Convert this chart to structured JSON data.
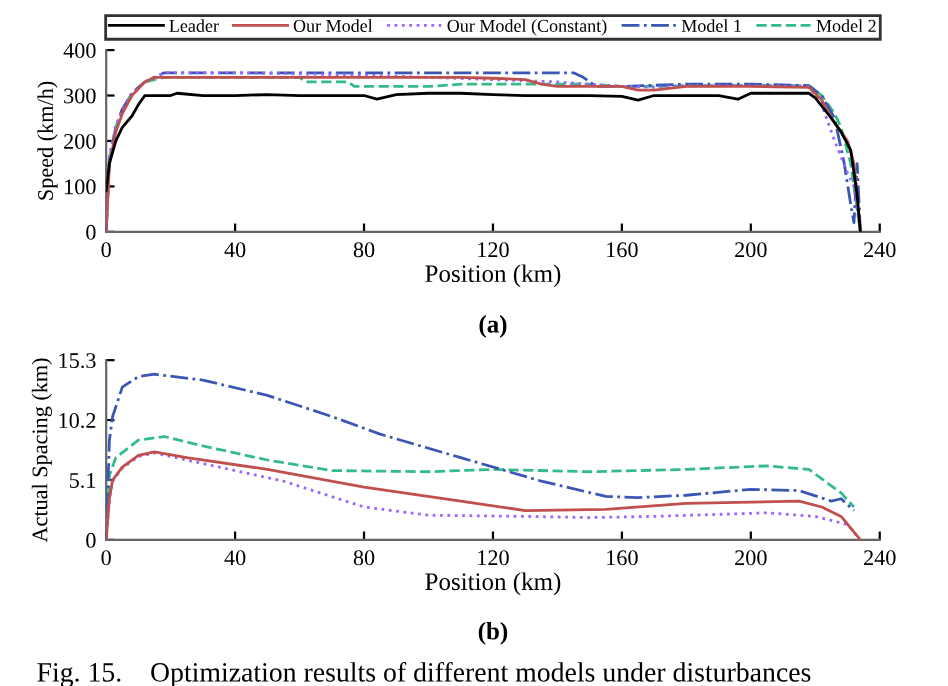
{
  "chart_data": [
    {
      "type": "line",
      "xlabel": "Position (km)",
      "ylabel": "Speed (km/h)",
      "xlim": [
        0,
        240
      ],
      "xticks": [
        0,
        40,
        80,
        120,
        160,
        200,
        240
      ],
      "ylim": [
        0,
        400
      ],
      "yticks": [
        0,
        100,
        200,
        300,
        400
      ],
      "legend": "top",
      "grid": false,
      "annotations": [
        "(a)"
      ],
      "series": [
        {
          "name": "Leader",
          "color": "#000000",
          "line_style": "solid",
          "x": [
            0,
            1,
            3,
            5,
            8,
            10,
            12,
            20,
            22,
            30,
            40,
            50,
            60,
            70,
            80,
            84,
            90,
            100,
            110,
            120,
            130,
            140,
            150,
            160,
            165,
            170,
            180,
            190,
            196,
            200,
            210,
            218,
            220,
            225,
            228,
            231,
            233,
            234
          ],
          "values": [
            90,
            150,
            200,
            230,
            255,
            280,
            300,
            300,
            305,
            300,
            300,
            302,
            300,
            300,
            300,
            292,
            302,
            305,
            305,
            302,
            300,
            300,
            300,
            298,
            290,
            300,
            300,
            300,
            292,
            305,
            305,
            305,
            295,
            250,
            220,
            180,
            80,
            0
          ]
        },
        {
          "name": "Our Model",
          "color": "#c0504d",
          "line_style": "solid",
          "x": [
            0,
            1,
            3,
            5,
            8,
            12,
            15,
            20,
            40,
            80,
            110,
            120,
            130,
            135,
            140,
            160,
            165,
            170,
            180,
            200,
            218,
            222,
            225,
            230,
            232,
            234
          ],
          "values": [
            0,
            150,
            220,
            260,
            300,
            330,
            340,
            340,
            340,
            340,
            340,
            338,
            335,
            325,
            320,
            320,
            312,
            312,
            320,
            320,
            318,
            290,
            250,
            200,
            150,
            0
          ]
        },
        {
          "name": "Our Model (Constant)",
          "color": "#9966ff",
          "line_style": "dotted",
          "x": [
            0,
            1,
            3,
            5,
            8,
            12,
            18,
            40,
            80,
            100,
            120,
            140,
            150,
            160,
            170,
            180,
            200,
            218,
            222,
            226,
            230,
            232,
            234
          ],
          "values": [
            0,
            170,
            230,
            270,
            305,
            330,
            350,
            350,
            345,
            340,
            335,
            330,
            325,
            320,
            318,
            322,
            322,
            320,
            280,
            200,
            130,
            100,
            0
          ]
        },
        {
          "name": "Model 1",
          "color": "#3a57b5",
          "line_style": "dashdot",
          "x": [
            0,
            1,
            3,
            5,
            8,
            12,
            18,
            40,
            80,
            120,
            145,
            148,
            152,
            160,
            180,
            200,
            218,
            222,
            226,
            229,
            231,
            232,
            233,
            234
          ],
          "values": [
            0,
            160,
            230,
            270,
            305,
            330,
            350,
            350,
            350,
            350,
            350,
            340,
            320,
            320,
            325,
            325,
            322,
            300,
            250,
            150,
            60,
            20,
            150,
            0
          ]
        },
        {
          "name": "Model 2",
          "color": "#33bb88",
          "line_style": "dashed",
          "x": [
            0,
            1,
            3,
            5,
            8,
            12,
            18,
            60,
            62,
            75,
            77,
            100,
            110,
            150,
            160,
            200,
            218,
            222,
            226,
            228,
            231,
            234
          ],
          "values": [
            0,
            160,
            230,
            270,
            305,
            330,
            340,
            340,
            330,
            330,
            320,
            320,
            325,
            325,
            320,
            322,
            322,
            300,
            260,
            230,
            150,
            0
          ]
        }
      ]
    },
    {
      "type": "line",
      "xlabel": "Position (km)",
      "ylabel": "Actual Spacing (km)",
      "xlim": [
        0,
        240
      ],
      "xticks": [
        0,
        40,
        80,
        120,
        160,
        200,
        240
      ],
      "ylim": [
        0,
        15.3
      ],
      "yticks": [
        0,
        5.1,
        10.2,
        15.3
      ],
      "legend": false,
      "grid": false,
      "annotations": [
        "(b)",
        "Fig. 15.    Optimization results of different models under disturbances"
      ],
      "series": [
        {
          "color": "#c0504d",
          "line_style": "solid",
          "x": [
            0,
            1,
            2,
            5,
            10,
            15,
            25,
            50,
            80,
            110,
            130,
            155,
            180,
            215,
            222,
            228,
            234
          ],
          "values": [
            0,
            3.5,
            5.1,
            6.2,
            7.2,
            7.5,
            7.0,
            6.0,
            4.5,
            3.3,
            2.5,
            2.6,
            3.1,
            3.3,
            2.8,
            2.0,
            0
          ]
        },
        {
          "color": "#9966ff",
          "line_style": "dotted",
          "x": [
            0,
            1,
            2,
            5,
            10,
            15,
            30,
            55,
            80,
            100,
            130,
            150,
            170,
            205,
            220,
            230,
            234
          ],
          "values": [
            0,
            3.5,
            5.0,
            6.1,
            7.1,
            7.4,
            6.5,
            5.0,
            2.8,
            2.1,
            2.0,
            1.9,
            2.0,
            2.3,
            2.0,
            1.3,
            0
          ]
        },
        {
          "color": "#3a57b5",
          "line_style": "dashdot",
          "x": [
            0,
            1,
            2,
            5,
            10,
            15,
            30,
            50,
            70,
            85,
            110,
            135,
            155,
            165,
            180,
            200,
            215,
            225,
            228,
            232
          ],
          "values": [
            0,
            8.5,
            10.5,
            13.0,
            13.9,
            14.1,
            13.6,
            12.3,
            10.5,
            9.0,
            7.0,
            5.0,
            3.7,
            3.6,
            3.8,
            4.3,
            4.2,
            3.3,
            3.5,
            2.5
          ]
        },
        {
          "color": "#33bb88",
          "line_style": "dashed",
          "x": [
            0,
            1,
            3,
            10,
            18,
            30,
            50,
            70,
            100,
            120,
            150,
            180,
            205,
            218,
            228,
            232
          ],
          "values": [
            0,
            5.5,
            7.0,
            8.5,
            8.8,
            8.0,
            6.8,
            5.9,
            5.8,
            6.0,
            5.8,
            6.0,
            6.3,
            6.0,
            4.0,
            2.8
          ]
        }
      ]
    }
  ]
}
